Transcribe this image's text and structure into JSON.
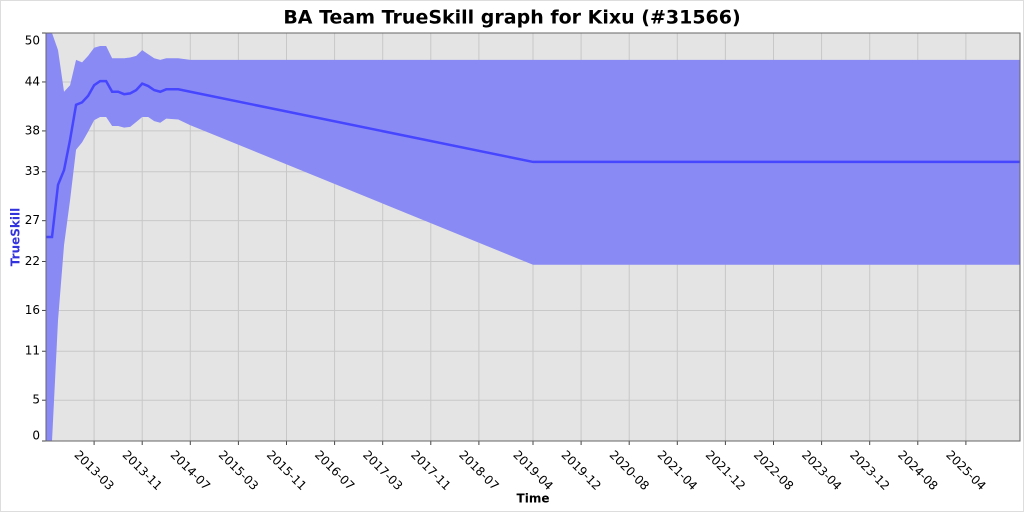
{
  "chart_data": {
    "type": "band-line",
    "title": "BA Team TrueSkill graph for Kixu (#31566)",
    "x_label": "Time",
    "y_label": "TrueSkill",
    "x": [
      "2012-07",
      "2012-08",
      "2012-09",
      "2012-10",
      "2012-11",
      "2012-12",
      "2013-01",
      "2013-02",
      "2013-03",
      "2013-04",
      "2013-05",
      "2013-06",
      "2013-07",
      "2013-08",
      "2013-09",
      "2013-10",
      "2013-11",
      "2013-12",
      "2014-01",
      "2014-02",
      "2014-03",
      "2014-05",
      "2014-07",
      "2019-04",
      "2026-01"
    ],
    "line": {
      "color": "#4646ff",
      "values": [
        25,
        25,
        31.4,
        33.2,
        36.9,
        41.2,
        41.5,
        42.3,
        43.6,
        44.1,
        44.1,
        42.8,
        42.8,
        42.5,
        42.6,
        43.0,
        43.8,
        43.5,
        43.0,
        42.8,
        43.1,
        43.1,
        42.8,
        34.2,
        34.2
      ]
    },
    "band": {
      "color": "#8a8af5",
      "upper": [
        50,
        50,
        47.9,
        42.8,
        43.6,
        46.7,
        46.4,
        47.2,
        48.2,
        48.4,
        48.4,
        46.9,
        46.9,
        46.9,
        47.0,
        47.2,
        47.9,
        47.4,
        46.9,
        46.7,
        46.9,
        46.9,
        46.7,
        46.7,
        46.7
      ],
      "lower": [
        0,
        0,
        14.8,
        24,
        29.5,
        35.7,
        36.6,
        37.9,
        39.3,
        39.7,
        39.7,
        38.6,
        38.6,
        38.4,
        38.5,
        39.1,
        39.7,
        39.7,
        39.2,
        39.0,
        39.5,
        39.4,
        38.7,
        21.6,
        21.6
      ]
    },
    "xlim": [
      "2012-07",
      "2026-01"
    ],
    "xticks": [
      "2013-03",
      "2013-11",
      "2014-07",
      "2015-03",
      "2015-11",
      "2016-07",
      "2017-03",
      "2017-11",
      "2018-07",
      "2019-04",
      "2019-12",
      "2020-08",
      "2021-04",
      "2021-12",
      "2022-08",
      "2023-04",
      "2023-12",
      "2024-08",
      "2025-04"
    ],
    "ylim": [
      0,
      50
    ],
    "yticks": [
      0,
      5,
      11,
      16,
      22,
      27,
      33,
      38,
      44,
      50
    ],
    "grid": true,
    "plot_background": "#e4e4e4"
  }
}
